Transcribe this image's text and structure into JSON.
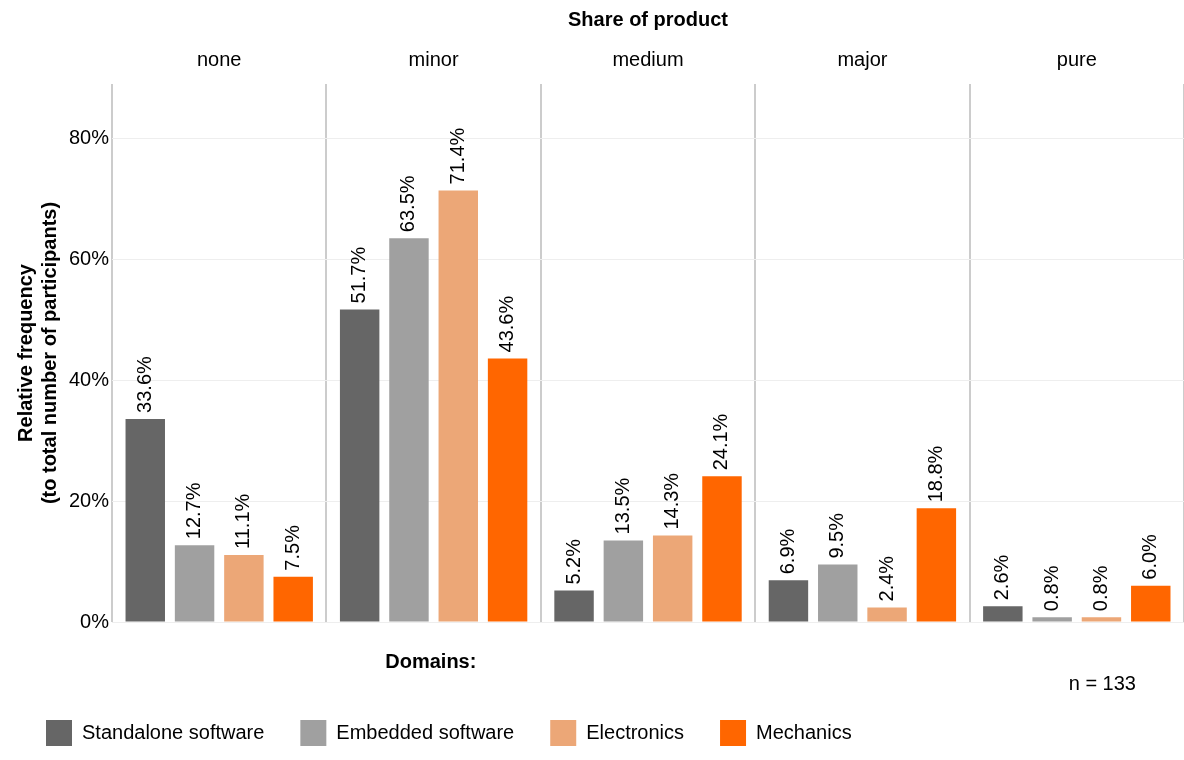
{
  "chart_data": {
    "type": "bar",
    "xlabel": "Share of product",
    "ylabel": "Relative frequency\n(to total number of participants)",
    "legend_title": "Domains:",
    "categories": [
      "none",
      "minor",
      "medium",
      "major",
      "pure"
    ],
    "series": [
      {
        "name": "Standalone software",
        "color": "#666666",
        "values": [
          33.6,
          51.7,
          5.2,
          6.9,
          2.6
        ],
        "value_labels": [
          "33.6%",
          "51.7%",
          "5.2%",
          "6.9%",
          "2.6%"
        ]
      },
      {
        "name": "Embedded software",
        "color": "#a0a0a0",
        "values": [
          12.7,
          63.5,
          13.5,
          9.5,
          0.8
        ],
        "value_labels": [
          "12.7%",
          "63.5%",
          "13.5%",
          "9.5%",
          "0.8%"
        ]
      },
      {
        "name": "Electronics",
        "color": "#eca777",
        "values": [
          11.1,
          71.4,
          14.3,
          2.4,
          0.8
        ],
        "value_labels": [
          "11.1%",
          "71.4%",
          "14.3%",
          "2.4%",
          "0.8%"
        ]
      },
      {
        "name": "Mechanics",
        "color": "#ff6600",
        "values": [
          7.5,
          43.6,
          24.1,
          18.8,
          6.0
        ],
        "value_labels": [
          "7.5%",
          "43.6%",
          "24.1%",
          "18.8%",
          "6.0%"
        ]
      }
    ],
    "ylim": [
      0,
      89
    ],
    "yticks": [
      {
        "value": 0,
        "label": "0%"
      },
      {
        "value": 20,
        "label": "20%"
      },
      {
        "value": 40,
        "label": "40%"
      },
      {
        "value": 60,
        "label": "60%"
      },
      {
        "value": 80,
        "label": "80%"
      }
    ],
    "grid": "y",
    "legend": "bottom left",
    "annotations": [
      "n = 133"
    ]
  }
}
